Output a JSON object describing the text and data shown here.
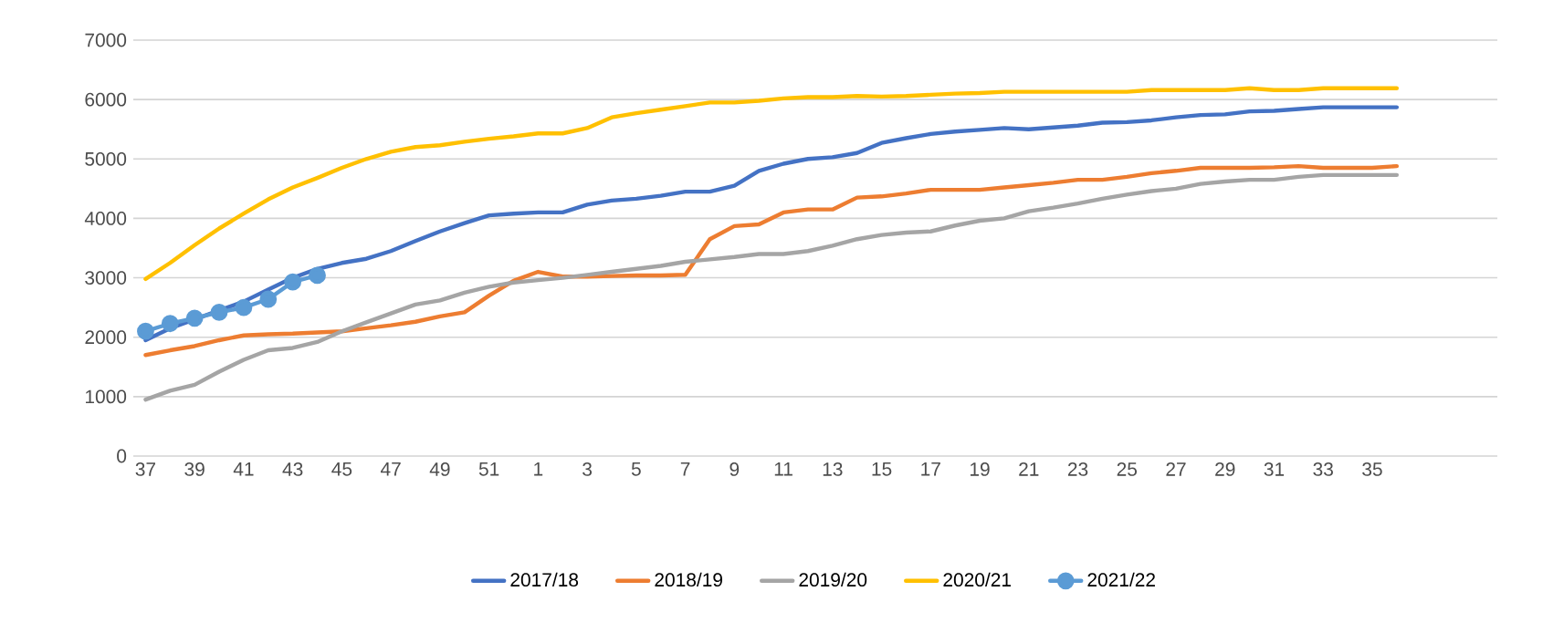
{
  "chart_data": {
    "type": "line",
    "categories": [
      "37",
      null,
      "39",
      null,
      "41",
      null,
      "43",
      null,
      "45",
      null,
      "47",
      null,
      "49",
      null,
      "51",
      null,
      "1",
      null,
      "3",
      null,
      "5",
      null,
      "7",
      null,
      "9",
      null,
      "11",
      null,
      "13",
      null,
      "15",
      null,
      "17",
      null,
      "19",
      null,
      "21",
      null,
      "23",
      null,
      "25",
      null,
      "27",
      null,
      "29",
      null,
      "31",
      null,
      "33",
      null,
      "35",
      null
    ],
    "series": [
      {
        "name": "2017/18",
        "color": "#4472c4",
        "values": [
          1950,
          2150,
          2300,
          2450,
          2600,
          2800,
          3000,
          3150,
          3250,
          3320,
          3450,
          3620,
          3780,
          3920,
          4050,
          4080,
          4100,
          4100,
          4230,
          4300,
          4330,
          4380,
          4450,
          4450,
          4550,
          4800,
          4920,
          5000,
          5030,
          5100,
          5270,
          5350,
          5420,
          5460,
          5490,
          5520,
          5500,
          5530,
          5560,
          5610,
          5620,
          5650,
          5700,
          5740,
          5750,
          5800,
          5810,
          5840,
          5870,
          5870,
          5870,
          5870
        ]
      },
      {
        "name": "2018/19",
        "color": "#ed7d31",
        "values": [
          1700,
          1780,
          1850,
          1950,
          2030,
          2050,
          2060,
          2080,
          2100,
          2150,
          2200,
          2260,
          2350,
          2420,
          2700,
          2950,
          3100,
          3020,
          3020,
          3030,
          3040,
          3040,
          3050,
          3650,
          3870,
          3900,
          4100,
          4150,
          4150,
          4350,
          4370,
          4420,
          4480,
          4480,
          4480,
          4520,
          4560,
          4600,
          4650,
          4650,
          4700,
          4760,
          4800,
          4850,
          4850,
          4850,
          4860,
          4880,
          4850,
          4850,
          4850,
          4880
        ]
      },
      {
        "name": "2019/20",
        "color": "#a5a5a5",
        "values": [
          950,
          1100,
          1200,
          1420,
          1620,
          1780,
          1820,
          1920,
          2100,
          2250,
          2400,
          2550,
          2620,
          2750,
          2850,
          2920,
          2960,
          3000,
          3050,
          3100,
          3150,
          3200,
          3270,
          3310,
          3350,
          3400,
          3400,
          3450,
          3540,
          3650,
          3720,
          3760,
          3780,
          3880,
          3960,
          4000,
          4120,
          4180,
          4250,
          4330,
          4400,
          4460,
          4500,
          4580,
          4620,
          4650,
          4650,
          4700,
          4730,
          4730,
          4730,
          4730
        ]
      },
      {
        "name": "2020/21",
        "color": "#ffc000",
        "values": [
          2980,
          3250,
          3550,
          3830,
          4080,
          4320,
          4520,
          4680,
          4850,
          5000,
          5120,
          5200,
          5230,
          5290,
          5340,
          5380,
          5430,
          5430,
          5520,
          5700,
          5770,
          5830,
          5890,
          5950,
          5950,
          5980,
          6020,
          6040,
          6040,
          6060,
          6050,
          6060,
          6080,
          6100,
          6110,
          6130,
          6130,
          6130,
          6130,
          6130,
          6130,
          6160,
          6160,
          6160,
          6160,
          6190,
          6160,
          6160,
          6190,
          6190,
          6190,
          6190
        ]
      },
      {
        "name": "2021/22",
        "color": "#5b9bd5",
        "marker": "circle",
        "values": [
          2100,
          2230,
          2320,
          2420,
          2500,
          2640,
          2930,
          3040,
          null,
          null,
          null,
          null,
          null,
          null,
          null,
          null,
          null,
          null,
          null,
          null,
          null,
          null,
          null,
          null,
          null,
          null,
          null,
          null,
          null,
          null,
          null,
          null,
          null,
          null,
          null,
          null,
          null,
          null,
          null,
          null,
          null,
          null,
          null,
          null,
          null,
          null,
          null,
          null,
          null,
          null,
          null,
          null
        ]
      }
    ],
    "ylim": [
      0,
      7000
    ],
    "yticks": [
      0,
      1000,
      2000,
      3000,
      4000,
      5000,
      6000,
      7000
    ],
    "grid": "y",
    "legend": "bottom",
    "marker": "none",
    "line_style": "solid"
  }
}
